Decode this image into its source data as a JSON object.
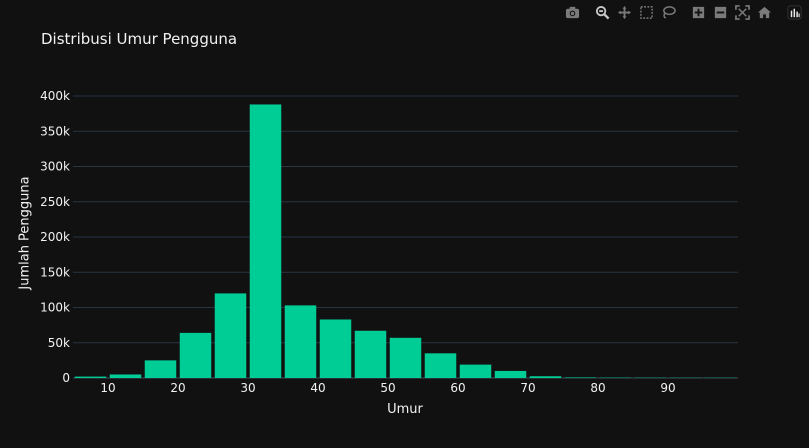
{
  "toolbar": {
    "buttons": [
      {
        "name": "camera-icon",
        "label": "Download plot as a png"
      },
      {
        "name": "zoom-icon",
        "label": "Zoom"
      },
      {
        "name": "pan-icon",
        "label": "Pan"
      },
      {
        "name": "box-select-icon",
        "label": "Box Select"
      },
      {
        "name": "lasso-select-icon",
        "label": "Lasso Select"
      },
      {
        "name": "zoom-in-icon",
        "label": "Zoom in"
      },
      {
        "name": "zoom-out-icon",
        "label": "Zoom out"
      },
      {
        "name": "autoscale-icon",
        "label": "Autoscale"
      },
      {
        "name": "reset-axes-icon",
        "label": "Reset axes"
      },
      {
        "name": "plotly-logo-icon",
        "label": "Produced with Plotly"
      }
    ]
  },
  "colors": {
    "background": "#111111",
    "bar": "#00cc96",
    "grid": "#283442"
  },
  "chart_data": {
    "type": "bar",
    "title": "Distribusi Umur Pengguna",
    "xlabel": "Umur",
    "ylabel": "Jumlah Pengguna",
    "xlim": [
      5,
      100
    ],
    "ylim": [
      0,
      400000
    ],
    "x_ticks": [
      10,
      20,
      30,
      40,
      50,
      60,
      70,
      80,
      90
    ],
    "y_ticks": [
      0,
      50000,
      100000,
      150000,
      200000,
      250000,
      300000,
      350000,
      400000
    ],
    "y_tick_labels": [
      "0",
      "50k",
      "100k",
      "150k",
      "200k",
      "250k",
      "300k",
      "350k",
      "400k"
    ],
    "bin_size": 5,
    "bins": [
      {
        "start": 5,
        "end": 10,
        "value": 2000
      },
      {
        "start": 10,
        "end": 15,
        "value": 5000
      },
      {
        "start": 15,
        "end": 20,
        "value": 25000
      },
      {
        "start": 20,
        "end": 25,
        "value": 64000
      },
      {
        "start": 25,
        "end": 30,
        "value": 120000
      },
      {
        "start": 30,
        "end": 35,
        "value": 388000
      },
      {
        "start": 35,
        "end": 40,
        "value": 103000
      },
      {
        "start": 40,
        "end": 45,
        "value": 83000
      },
      {
        "start": 45,
        "end": 50,
        "value": 67000
      },
      {
        "start": 50,
        "end": 55,
        "value": 57000
      },
      {
        "start": 55,
        "end": 60,
        "value": 35000
      },
      {
        "start": 60,
        "end": 65,
        "value": 19000
      },
      {
        "start": 65,
        "end": 70,
        "value": 10000
      },
      {
        "start": 70,
        "end": 75,
        "value": 2500
      },
      {
        "start": 75,
        "end": 80,
        "value": 800
      },
      {
        "start": 80,
        "end": 85,
        "value": 500
      },
      {
        "start": 85,
        "end": 90,
        "value": 400
      },
      {
        "start": 90,
        "end": 95,
        "value": 300
      },
      {
        "start": 95,
        "end": 100,
        "value": 300
      }
    ],
    "grid": true,
    "legend": "none"
  }
}
